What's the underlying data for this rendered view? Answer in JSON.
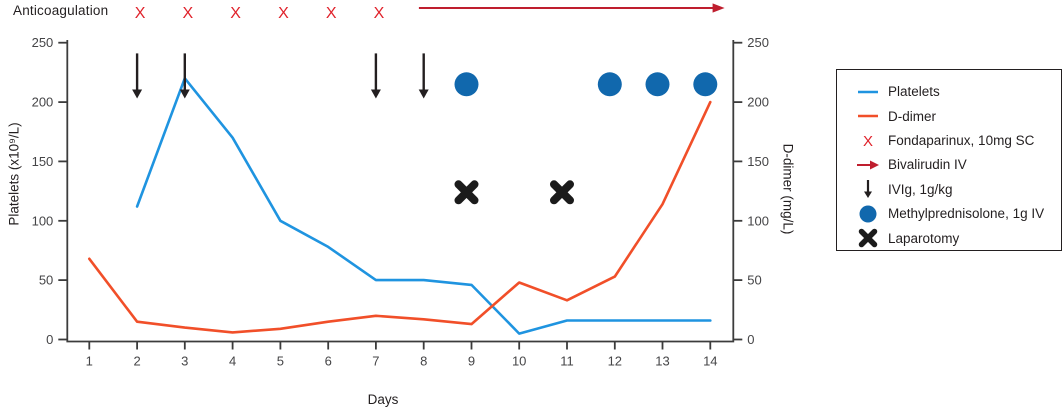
{
  "figure": {
    "background": "#ffffff"
  },
  "chart_data": {
    "type": "line",
    "xlabel": "Days",
    "ylabel_left": "Platelets (x10⁹/L)",
    "ylabel_right": "D-dimer (mg/L)",
    "x_days": [
      1,
      2,
      3,
      4,
      5,
      6,
      7,
      8,
      9,
      10,
      11,
      12,
      13,
      14
    ],
    "ylim": [
      0,
      250
    ],
    "yticks": [
      0,
      50,
      100,
      150,
      200,
      250
    ],
    "grid": false,
    "legend_position": "right-outside",
    "series": [
      {
        "name": "Platelets",
        "axis": "left",
        "color": "#1f94e0",
        "days": [
          2,
          3,
          4,
          5,
          6,
          7,
          8,
          9,
          10,
          11,
          12,
          13,
          14
        ],
        "values": [
          112,
          220,
          170,
          100,
          78,
          50,
          50,
          46,
          5,
          16,
          16,
          16,
          16
        ]
      },
      {
        "name": "D-dimer",
        "axis": "right",
        "color": "#f14f29",
        "days": [
          1,
          2,
          3,
          4,
          5,
          6,
          7,
          8,
          9,
          10,
          11,
          12,
          13,
          14
        ],
        "values": [
          68,
          15,
          10,
          6,
          9,
          15,
          20,
          17,
          13,
          48,
          33,
          53,
          114,
          200
        ]
      }
    ],
    "annotations": {
      "anticoagulation": {
        "label": "Anticoagulation"
      },
      "fondaparinux": {
        "symbol": "red-x",
        "color": "#e0222b",
        "days": [
          2,
          3,
          4,
          5,
          6,
          7
        ]
      },
      "bivalirudin": {
        "symbol": "red-arrow-right",
        "color": "#bf1e2e",
        "from_day": 7.9,
        "to_day": 14.3
      },
      "ivig": {
        "symbol": "black-down-arrow",
        "color": "#231f20",
        "days": [
          2,
          3,
          7,
          8
        ],
        "value_top": 241,
        "value_tip": 203
      },
      "methylprednisolone": {
        "symbol": "blue-circle",
        "color": "#1168ad",
        "days": [
          9,
          12,
          13,
          14
        ],
        "value": 215
      },
      "laparotomy": {
        "symbol": "black-cross",
        "color": "#1b1b1b",
        "days": [
          9,
          11
        ],
        "value": 124
      }
    }
  },
  "legend": {
    "items": [
      {
        "symbol": "line",
        "color": "#1f94e0",
        "label": "Platelets"
      },
      {
        "symbol": "line",
        "color": "#f14f29",
        "label": "D-dimer"
      },
      {
        "symbol": "x-letter",
        "color": "#e0222b",
        "label": "Fondaparinux, 10mg SC"
      },
      {
        "symbol": "arrow-right",
        "color": "#bf1e2e",
        "label": "Bivalirudin IV"
      },
      {
        "symbol": "arrow-down",
        "color": "#231f20",
        "label": "IVIg, 1g/kg"
      },
      {
        "symbol": "circle",
        "color": "#1168ad",
        "label": "Methylprednisolone, 1g IV"
      },
      {
        "symbol": "cross",
        "color": "#1b1b1b",
        "label": "Laparotomy"
      }
    ]
  }
}
